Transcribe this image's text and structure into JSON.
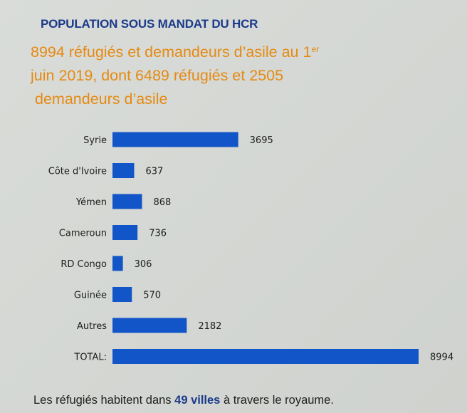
{
  "header": {
    "title": "POPULATION SOUS MANDAT DU HCR",
    "subtitle_line1": "8994 réfugiés et demandeurs d’asile au 1",
    "subtitle_sup": "er",
    "subtitle_line2": "juin 2019, dont 6489 réfugiés et 2505",
    "subtitle_line3": "demandeurs d’asile"
  },
  "footer": {
    "text_before": "Les réfugiés habitent dans ",
    "highlight": "49 villes",
    "text_after": " à travers le royaume."
  },
  "colors": {
    "bar": "#1255c8",
    "title": "#1a3a8a",
    "subtitle": "#e58a13"
  },
  "chart_data": {
    "type": "bar",
    "orientation": "horizontal",
    "title": "POPULATION SOUS MANDAT DU HCR",
    "xlabel": "",
    "ylabel": "",
    "grid": false,
    "legend": "none",
    "categories": [
      "Syrie",
      "Côte d'Ivoire",
      "Yémen",
      "Cameroun",
      "RD Congo",
      "Guinée",
      "Autres",
      "TOTAL:"
    ],
    "values": [
      3695,
      637,
      868,
      736,
      306,
      570,
      2182,
      8994
    ],
    "value_labels": [
      "3695",
      "637",
      "868",
      "736",
      "306",
      "570",
      "2182",
      "8994"
    ]
  }
}
